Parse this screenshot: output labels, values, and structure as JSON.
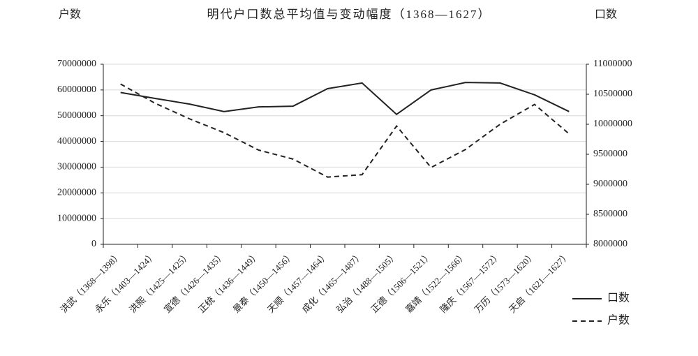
{
  "chart_data": {
    "type": "line",
    "title": "明代户口数总平均值与变动幅度（1368—1627）",
    "y_label": "户数",
    "y2_label": "口数",
    "categories": [
      "洪武（1368—1398）",
      "永乐（1403—1424）",
      "洪熙（1425—1425）",
      "宣德（1426—1435）",
      "正统（1436—1449）",
      "景泰（1450—1456）",
      "天顺（1457—1464）",
      "成化（1465—1487）",
      "弘治（1488—1505）",
      "正德（1506—1521）",
      "嘉靖（1522—1566）",
      "隆庆（1567—1572）",
      "万历（1573—1620）",
      "天启（1621—1627）"
    ],
    "series": [
      {
        "name": "口数",
        "color": "#222222",
        "line_style": "solid",
        "axis": "y",
        "values": [
          59000000,
          56700000,
          54500000,
          51600000,
          53400000,
          53700000,
          60500000,
          62700000,
          50500000,
          60000000,
          62900000,
          62700000,
          58100000,
          51600000
        ]
      },
      {
        "name": "户数",
        "color": "#222222",
        "line_style": "dashed",
        "axis": "y2",
        "values": [
          10670000,
          10350000,
          10090000,
          9860000,
          9570000,
          9420000,
          9120000,
          9160000,
          9970000,
          9280000,
          9580000,
          10000000,
          10330000,
          9840000
        ]
      }
    ],
    "ylim": [
      0,
      70000000
    ],
    "yticks": [
      0,
      10000000,
      20000000,
      30000000,
      40000000,
      50000000,
      60000000,
      70000000
    ],
    "y2lim": [
      8000000,
      11000000
    ],
    "y2ticks": [
      8000000,
      8500000,
      9000000,
      9500000,
      10000000,
      10500000,
      11000000
    ],
    "grid": true,
    "legend": "lower right"
  }
}
